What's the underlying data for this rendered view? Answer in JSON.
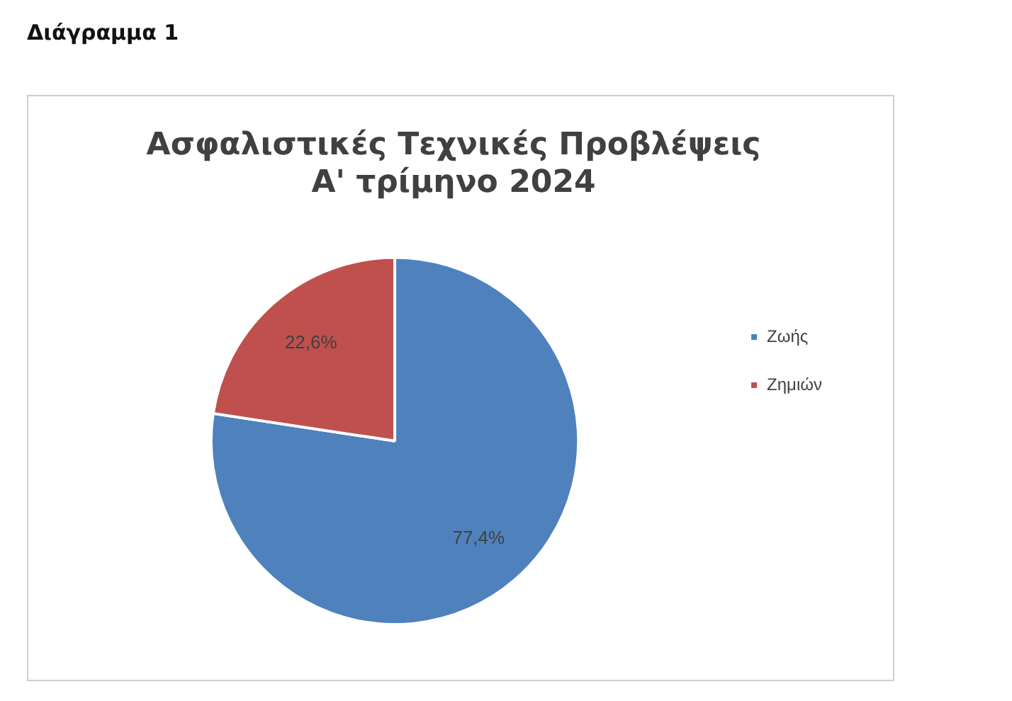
{
  "chart_data": {
    "type": "pie",
    "title": "Ασφαλιστικές Τεχνικές Προβλέψεις\nΑ' τρίμηνο 2024",
    "annotations": [
      "Διάγραμμα 1"
    ],
    "categories": [
      "Ζωής",
      "Ζημιών"
    ],
    "values": [
      77.4,
      22.6
    ],
    "value_labels": [
      "77,4%",
      "22,6%"
    ],
    "colors": [
      "#4f81bd",
      "#c0504d"
    ],
    "legend": "right"
  }
}
